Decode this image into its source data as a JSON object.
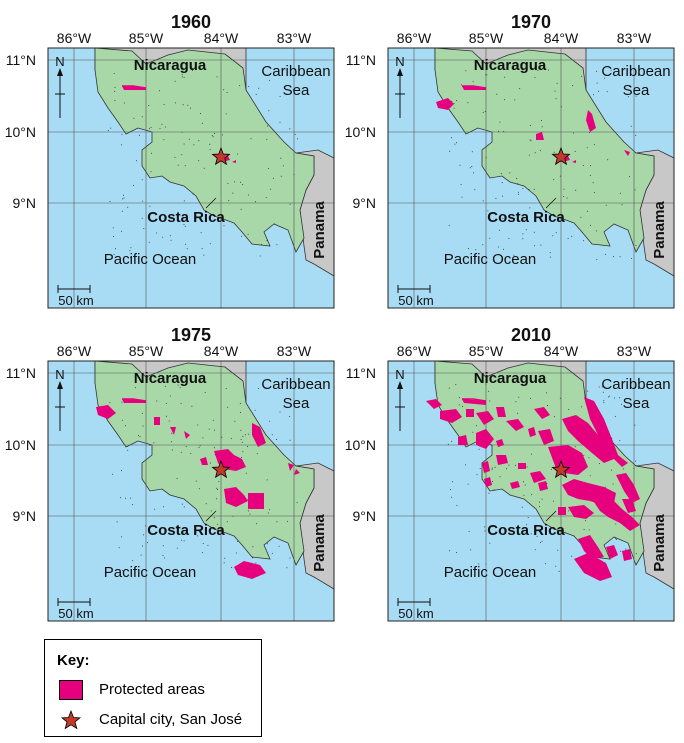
{
  "panels": [
    {
      "year": "1960"
    },
    {
      "year": "1970"
    },
    {
      "year": "1975"
    },
    {
      "year": "2010"
    }
  ],
  "map": {
    "longitudes": [
      "86°W",
      "85°W",
      "84°W",
      "83°W"
    ],
    "latitudes": [
      "11°N",
      "10°N",
      "9°N"
    ],
    "labels": {
      "nicaragua": "Nicaragua",
      "caribbean1": "Caribbean",
      "caribbean2": "Sea",
      "costa_rica": "Costa Rica",
      "pacific": "Pacific Ocean",
      "panama": "Panama",
      "north": "N",
      "scale": "50 km"
    },
    "colors": {
      "sea": "#a8dcf5",
      "land": "#a8d8a8",
      "neighbor": "#c8c8c8",
      "protected": "#e6007e",
      "capital": "#c0392b"
    }
  },
  "key": {
    "title": "Key:",
    "protected_label": "Protected areas",
    "capital_label": "Capital city, San José"
  }
}
